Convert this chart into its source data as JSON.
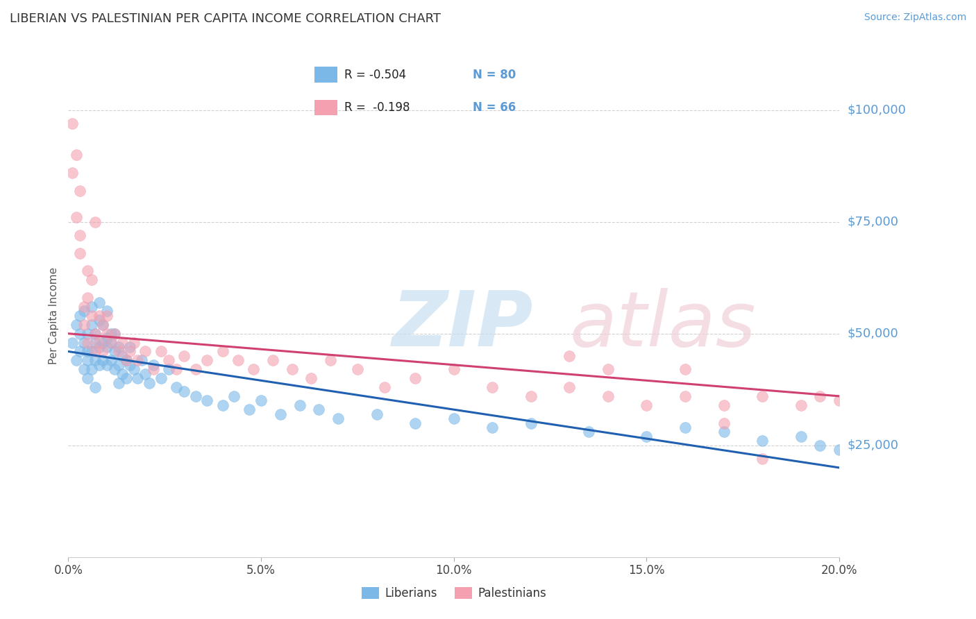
{
  "title": "LIBERIAN VS PALESTINIAN PER CAPITA INCOME CORRELATION CHART",
  "source_text": "Source: ZipAtlas.com",
  "ylabel": "Per Capita Income",
  "xlim": [
    0.0,
    0.2
  ],
  "ylim": [
    0,
    108000
  ],
  "yticks": [
    25000,
    50000,
    75000,
    100000
  ],
  "ytick_labels": [
    "$25,000",
    "$50,000",
    "$75,000",
    "$100,000"
  ],
  "xtick_labels": [
    "0.0%",
    "5.0%",
    "10.0%",
    "15.0%",
    "20.0%"
  ],
  "xticks": [
    0.0,
    0.05,
    0.1,
    0.15,
    0.2
  ],
  "blue_color": "#7bb8e8",
  "pink_color": "#f4a0b0",
  "line_blue": "#2060b0",
  "line_pink": "#d04070",
  "ext_line_color": "#bbbbbb",
  "axis_label_color": "#5b9bd5",
  "legend_R1": "R = -0.504",
  "legend_N1": "N = 80",
  "legend_R2": "R =  -0.198",
  "legend_N2": "N = 66",
  "blue_x": [
    0.001,
    0.002,
    0.002,
    0.003,
    0.003,
    0.003,
    0.004,
    0.004,
    0.004,
    0.005,
    0.005,
    0.005,
    0.005,
    0.006,
    0.006,
    0.006,
    0.006,
    0.007,
    0.007,
    0.007,
    0.007,
    0.008,
    0.008,
    0.008,
    0.008,
    0.009,
    0.009,
    0.009,
    0.01,
    0.01,
    0.01,
    0.01,
    0.011,
    0.011,
    0.011,
    0.012,
    0.012,
    0.012,
    0.013,
    0.013,
    0.013,
    0.014,
    0.014,
    0.015,
    0.015,
    0.016,
    0.016,
    0.017,
    0.018,
    0.019,
    0.02,
    0.021,
    0.022,
    0.024,
    0.026,
    0.028,
    0.03,
    0.033,
    0.036,
    0.04,
    0.043,
    0.047,
    0.05,
    0.055,
    0.06,
    0.065,
    0.07,
    0.08,
    0.09,
    0.1,
    0.11,
    0.12,
    0.135,
    0.15,
    0.16,
    0.17,
    0.18,
    0.19,
    0.195,
    0.2
  ],
  "blue_y": [
    48000,
    44000,
    52000,
    46000,
    50000,
    54000,
    42000,
    48000,
    55000,
    44000,
    50000,
    46000,
    40000,
    52000,
    46000,
    42000,
    56000,
    50000,
    44000,
    48000,
    38000,
    53000,
    47000,
    43000,
    57000,
    48000,
    44000,
    52000,
    55000,
    49000,
    43000,
    47000,
    50000,
    44000,
    48000,
    46000,
    42000,
    50000,
    47000,
    43000,
    39000,
    45000,
    41000,
    44000,
    40000,
    43000,
    47000,
    42000,
    40000,
    44000,
    41000,
    39000,
    43000,
    40000,
    42000,
    38000,
    37000,
    36000,
    35000,
    34000,
    36000,
    33000,
    35000,
    32000,
    34000,
    33000,
    31000,
    32000,
    30000,
    31000,
    29000,
    30000,
    28000,
    27000,
    29000,
    28000,
    26000,
    27000,
    25000,
    24000
  ],
  "pink_x": [
    0.001,
    0.001,
    0.002,
    0.002,
    0.003,
    0.003,
    0.003,
    0.004,
    0.004,
    0.005,
    0.005,
    0.005,
    0.006,
    0.006,
    0.007,
    0.007,
    0.008,
    0.008,
    0.009,
    0.009,
    0.01,
    0.01,
    0.011,
    0.012,
    0.013,
    0.014,
    0.015,
    0.016,
    0.017,
    0.018,
    0.02,
    0.022,
    0.024,
    0.026,
    0.028,
    0.03,
    0.033,
    0.036,
    0.04,
    0.044,
    0.048,
    0.053,
    0.058,
    0.063,
    0.068,
    0.075,
    0.082,
    0.09,
    0.1,
    0.11,
    0.12,
    0.13,
    0.14,
    0.15,
    0.16,
    0.17,
    0.18,
    0.19,
    0.195,
    0.2,
    0.007,
    0.16,
    0.13,
    0.14,
    0.17,
    0.18
  ],
  "pink_y": [
    97000,
    86000,
    90000,
    76000,
    82000,
    68000,
    72000,
    52000,
    56000,
    64000,
    58000,
    48000,
    54000,
    62000,
    50000,
    46000,
    54000,
    48000,
    52000,
    46000,
    54000,
    50000,
    48000,
    50000,
    46000,
    48000,
    44000,
    46000,
    48000,
    44000,
    46000,
    42000,
    46000,
    44000,
    42000,
    45000,
    42000,
    44000,
    46000,
    44000,
    42000,
    44000,
    42000,
    40000,
    44000,
    42000,
    38000,
    40000,
    42000,
    38000,
    36000,
    38000,
    36000,
    34000,
    36000,
    34000,
    36000,
    34000,
    36000,
    35000,
    75000,
    42000,
    45000,
    42000,
    30000,
    22000
  ]
}
